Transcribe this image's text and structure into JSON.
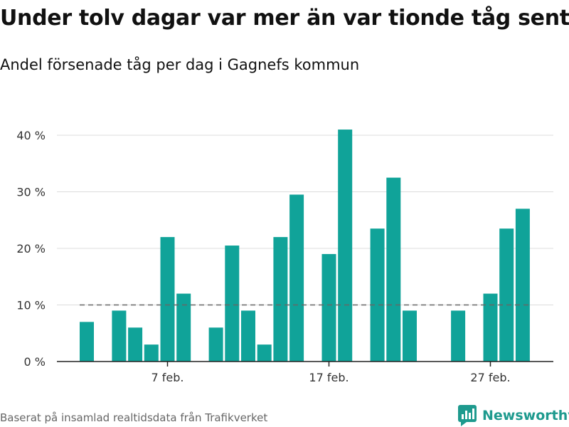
{
  "title": "Under tolv dagar var mer än var tionde tåg sent",
  "subtitle": "Andel försenade tåg per dag i Gagnefs kommun",
  "source": "Baserat på insamlad realtidsdata från Trafikverket",
  "brand": "Newsworthy",
  "colors": {
    "bar": "#10a399",
    "reference": "#666666"
  },
  "chart_data": {
    "type": "bar",
    "x_axis": "date",
    "x_start": "2024-02-01",
    "x_tick_labels": [
      {
        "date": "2024-02-07",
        "label": "7 feb."
      },
      {
        "date": "2024-02-17",
        "label": "17 feb."
      },
      {
        "date": "2024-02-27",
        "label": "27 feb."
      }
    ],
    "bars": [
      {
        "date": "2024-02-02",
        "value": 7
      },
      {
        "date": "2024-02-04",
        "value": 9
      },
      {
        "date": "2024-02-05",
        "value": 6
      },
      {
        "date": "2024-02-06",
        "value": 3
      },
      {
        "date": "2024-02-07",
        "value": 22
      },
      {
        "date": "2024-02-08",
        "value": 12
      },
      {
        "date": "2024-02-10",
        "value": 6
      },
      {
        "date": "2024-02-11",
        "value": 20.5
      },
      {
        "date": "2024-02-12",
        "value": 9
      },
      {
        "date": "2024-02-13",
        "value": 3
      },
      {
        "date": "2024-02-14",
        "value": 22
      },
      {
        "date": "2024-02-15",
        "value": 29.5
      },
      {
        "date": "2024-02-17",
        "value": 19
      },
      {
        "date": "2024-02-18",
        "value": 41
      },
      {
        "date": "2024-02-20",
        "value": 23.5
      },
      {
        "date": "2024-02-21",
        "value": 32.5
      },
      {
        "date": "2024-02-22",
        "value": 9
      },
      {
        "date": "2024-02-25",
        "value": 9
      },
      {
        "date": "2024-02-27",
        "value": 12
      },
      {
        "date": "2024-02-28",
        "value": 23.5
      },
      {
        "date": "2024-02-29",
        "value": 27
      }
    ],
    "y_ticks": [
      0,
      10,
      20,
      30,
      40
    ],
    "y_tick_labels": [
      "0 %",
      "10 %",
      "20 %",
      "30 %",
      "40 %"
    ],
    "ylim": [
      0,
      40
    ],
    "reference_line": 10,
    "grid": true
  }
}
